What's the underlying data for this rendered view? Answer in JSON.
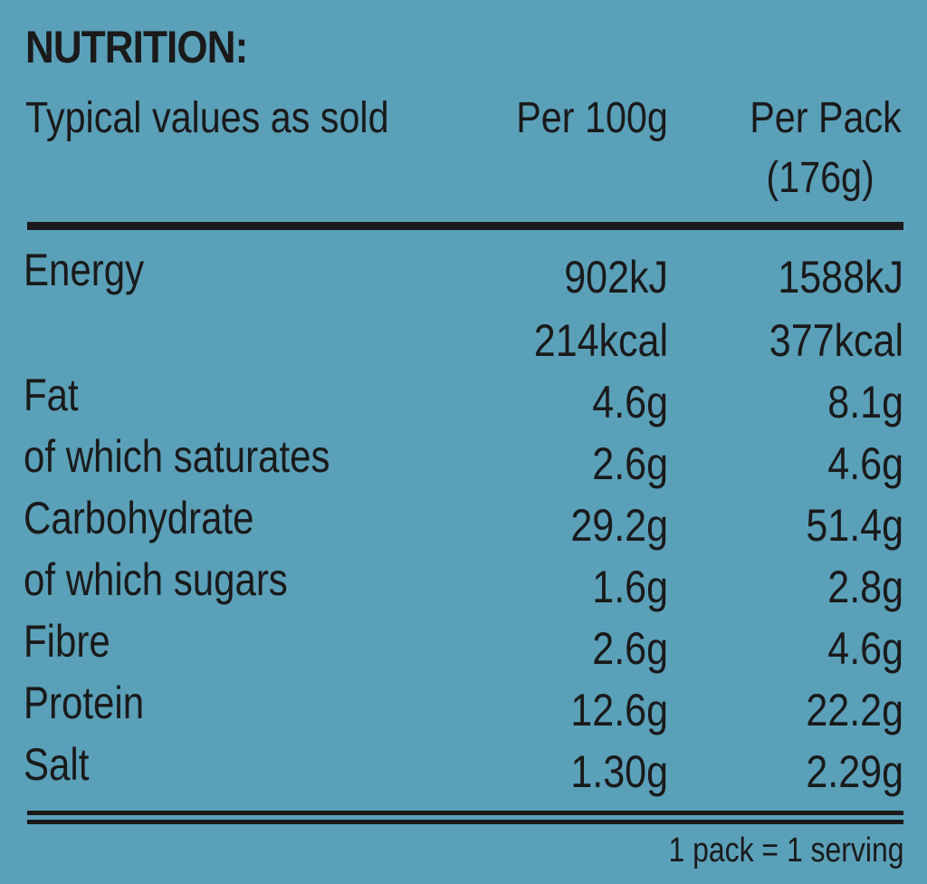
{
  "title": "NUTRITION:",
  "header": {
    "label": "Typical values as sold",
    "col1": "Per 100g",
    "col2_line1": "Per Pack",
    "col2_line2": "(176g)"
  },
  "rows": [
    {
      "label": "Energy",
      "per100": "902kJ",
      "perpack": "1588kJ"
    },
    {
      "label": "",
      "per100": "214kcal",
      "perpack": "377kcal"
    },
    {
      "label": "Fat",
      "per100": "4.6g",
      "perpack": "8.1g"
    },
    {
      "label": "of which saturates",
      "per100": "2.6g",
      "perpack": "4.6g"
    },
    {
      "label": "Carbohydrate",
      "per100": "29.2g",
      "perpack": "51.4g"
    },
    {
      "label": "of which sugars",
      "per100": "1.6g",
      "perpack": "2.8g"
    },
    {
      "label": "Fibre",
      "per100": "2.6g",
      "perpack": "4.6g"
    },
    {
      "label": "Protein",
      "per100": "12.6g",
      "perpack": "22.2g"
    },
    {
      "label": "Salt",
      "per100": "1.30g",
      "perpack": "2.29g"
    }
  ],
  "footnote": "1 pack = 1 serving",
  "colors": {
    "background": "#5aa0b8",
    "text": "#1a1a1a"
  }
}
